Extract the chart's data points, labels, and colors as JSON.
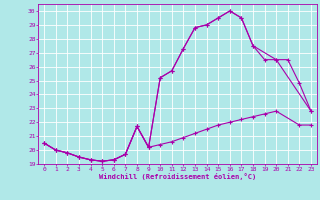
{
  "xlabel": "Windchill (Refroidissement éolien,°C)",
  "bg_color": "#b0e8e8",
  "grid_color": "#ffffff",
  "line_color": "#aa00aa",
  "xlim": [
    -0.5,
    23.5
  ],
  "ylim": [
    19,
    30.5
  ],
  "yticks": [
    19,
    20,
    21,
    22,
    23,
    24,
    25,
    26,
    27,
    28,
    29,
    30
  ],
  "xticks": [
    0,
    1,
    2,
    3,
    4,
    5,
    6,
    7,
    8,
    9,
    10,
    11,
    12,
    13,
    14,
    15,
    16,
    17,
    18,
    19,
    20,
    21,
    22,
    23
  ],
  "line1_x": [
    0,
    1,
    2,
    3,
    4,
    5,
    6,
    7,
    8,
    9,
    10,
    11,
    12,
    13,
    14,
    15,
    16,
    17,
    18,
    19,
    20,
    22,
    23
  ],
  "line1_y": [
    20.5,
    20.0,
    19.8,
    19.5,
    19.3,
    19.2,
    19.3,
    19.7,
    21.7,
    20.2,
    20.4,
    20.6,
    20.9,
    21.2,
    21.5,
    21.8,
    22.0,
    22.2,
    22.4,
    22.6,
    22.8,
    21.8,
    21.8
  ],
  "line2_x": [
    0,
    1,
    2,
    3,
    4,
    5,
    6,
    7,
    8,
    9,
    10,
    11,
    12,
    13,
    14,
    15,
    16,
    17,
    18,
    20,
    23
  ],
  "line2_y": [
    20.5,
    20.0,
    19.8,
    19.5,
    19.3,
    19.2,
    19.3,
    19.7,
    21.7,
    20.2,
    25.2,
    25.7,
    27.3,
    28.8,
    29.0,
    29.5,
    30.0,
    29.5,
    27.5,
    26.5,
    22.8
  ],
  "line3_x": [
    0,
    1,
    2,
    3,
    4,
    5,
    6,
    7,
    8,
    9,
    10,
    11,
    12,
    13,
    14,
    15,
    16,
    17,
    18,
    19,
    20,
    21,
    22,
    23
  ],
  "line3_y": [
    20.5,
    20.0,
    19.8,
    19.5,
    19.3,
    19.2,
    19.3,
    19.7,
    21.7,
    20.2,
    25.2,
    25.7,
    27.3,
    28.8,
    29.0,
    29.5,
    30.0,
    29.5,
    27.5,
    26.5,
    26.5,
    26.5,
    24.8,
    22.8
  ],
  "marker": "+",
  "markersize": 3,
  "linewidth": 0.8
}
